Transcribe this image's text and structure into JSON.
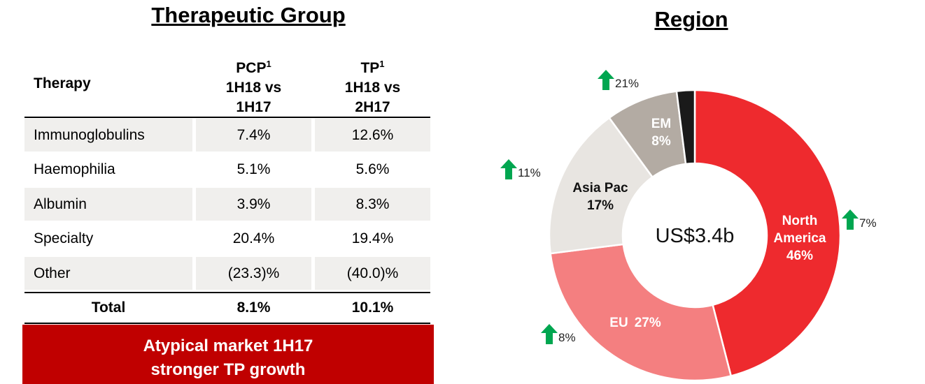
{
  "left": {
    "title": "Therapeutic Group",
    "table": {
      "header": [
        {
          "name": "Therapy"
        },
        {
          "name": "PCP",
          "note": "1",
          "lines": [
            "1H18 vs",
            "1H17"
          ]
        },
        {
          "name": "TP",
          "note": "1",
          "lines": [
            "1H18 vs",
            "2H17"
          ]
        }
      ],
      "rows": [
        [
          "Immunoglobulins",
          "7.4%",
          "12.6%"
        ],
        [
          "Haemophilia",
          "5.1%",
          "5.6%"
        ],
        [
          "Albumin",
          "3.9%",
          "8.3%"
        ],
        [
          "Specialty",
          "20.4%",
          "19.4%"
        ],
        [
          "Other",
          "(23.3)%",
          "(40.0)%"
        ]
      ],
      "total": [
        "Total",
        "8.1%",
        "10.1%"
      ]
    },
    "callout": [
      "Atypical market 1H17",
      "stronger TP growth"
    ]
  },
  "chart_data": {
    "type": "donut",
    "title": "Region",
    "center_label": "US$3.4b",
    "categories": [
      "North America",
      "EU",
      "Asia Pac",
      "EM",
      null
    ],
    "values": [
      46,
      27,
      17,
      8,
      2
    ],
    "value_labels": [
      "46%",
      "27%",
      "17%",
      "8%",
      null
    ],
    "colors": [
      "#ee2a2e",
      "#f47f80",
      "#e8e5e1",
      "#b3aba3",
      "#1a1a1a"
    ],
    "growth": [
      "7%",
      "8%",
      "11%",
      "21%"
    ]
  }
}
